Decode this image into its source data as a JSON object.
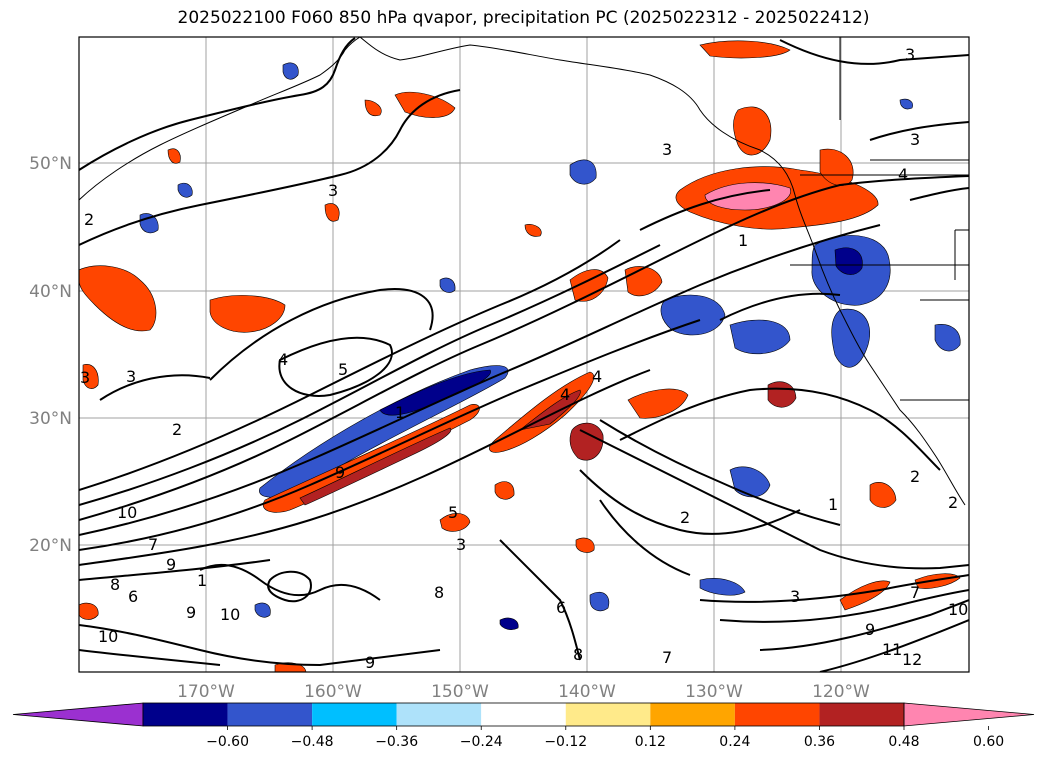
{
  "title": "2025022100 F060 850 hPa qvapor, precipitation PC (2025022312 - 2025022412)",
  "map": {
    "lon_labels": [
      "170°W",
      "160°W",
      "150°W",
      "140°W",
      "130°W",
      "120°W"
    ],
    "lat_labels": [
      "50°N",
      "40°N",
      "30°N",
      "20°N"
    ],
    "contour_labels": [
      "3",
      "3",
      "3",
      "3",
      "3",
      "2",
      "2",
      "4",
      "5",
      "3",
      "1",
      "4",
      "4",
      "9",
      "10",
      "7",
      "9",
      "8",
      "6",
      "10",
      "9",
      "10",
      "2",
      "5",
      "3",
      "8",
      "9",
      "6",
      "8",
      "7",
      "2",
      "1",
      "2",
      "3",
      "7",
      "9",
      "10",
      "11",
      "12",
      "1",
      "4",
      "1"
    ]
  },
  "colorbar": {
    "colors": [
      "#9b30d0",
      "#00008b",
      "#3355cc",
      "#00bfff",
      "#aee2fa",
      "#ffffff",
      "#ffea8a",
      "#ffa500",
      "#ff4500",
      "#b22222",
      "#ff85b0"
    ],
    "labels": [
      "−0.60",
      "−0.48",
      "−0.36",
      "−0.24",
      "−0.12",
      "0.12",
      "0.24",
      "0.36",
      "0.48",
      "0.60"
    ]
  }
}
